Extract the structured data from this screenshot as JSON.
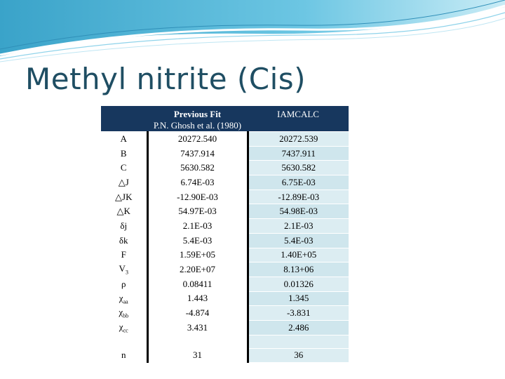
{
  "slide": {
    "title": "Methyl nitrite (Cis)"
  },
  "table": {
    "header": {
      "previous_fit_title": "Previous Fit",
      "previous_fit_source": "P.N. Ghosh et al. (1980)",
      "iamcalc": "IAMCALC"
    },
    "rows": [
      {
        "param": "A",
        "prev": "20272.540",
        "calc": "20272.539"
      },
      {
        "param": "B",
        "prev": "7437.914",
        "calc": "7437.911"
      },
      {
        "param": "C",
        "prev": "5630.582",
        "calc": "5630.582"
      },
      {
        "param": "△J",
        "prev": "6.74E-03",
        "calc": "6.75E-03"
      },
      {
        "param": "△JK",
        "prev": "-12.90E-03",
        "calc": "-12.89E-03"
      },
      {
        "param": "△K",
        "prev": "54.97E-03",
        "calc": "54.98E-03"
      },
      {
        "param": "δj",
        "prev": "2.1E-03",
        "calc": "2.1E-03"
      },
      {
        "param": "δk",
        "prev": "5.4E-03",
        "calc": "5.4E-03"
      },
      {
        "param": "F",
        "prev": "1.59E+05",
        "calc": "1.40E+05"
      },
      {
        "param": "V",
        "param_sub": "3",
        "prev": "2.20E+07",
        "calc": "8.13+06"
      },
      {
        "param": "ρ",
        "prev": "0.08411",
        "calc": "0.01326"
      },
      {
        "param": "χ",
        "param_sub": "aa",
        "prev": "1.443",
        "calc": "1.345"
      },
      {
        "param": "χ",
        "param_sub": "bb",
        "prev": "-4.874",
        "calc": "-3.831"
      },
      {
        "param": "χ",
        "param_sub": "cc",
        "prev": "3.431",
        "calc": "2.486"
      }
    ],
    "footer_row": {
      "param": "n",
      "prev": "31",
      "calc": "36"
    }
  },
  "colors": {
    "title": "#1f4e63",
    "header_bg": "#17375e",
    "cell_tint": "#dcedf2",
    "swoosh": "#4fb3d6"
  }
}
